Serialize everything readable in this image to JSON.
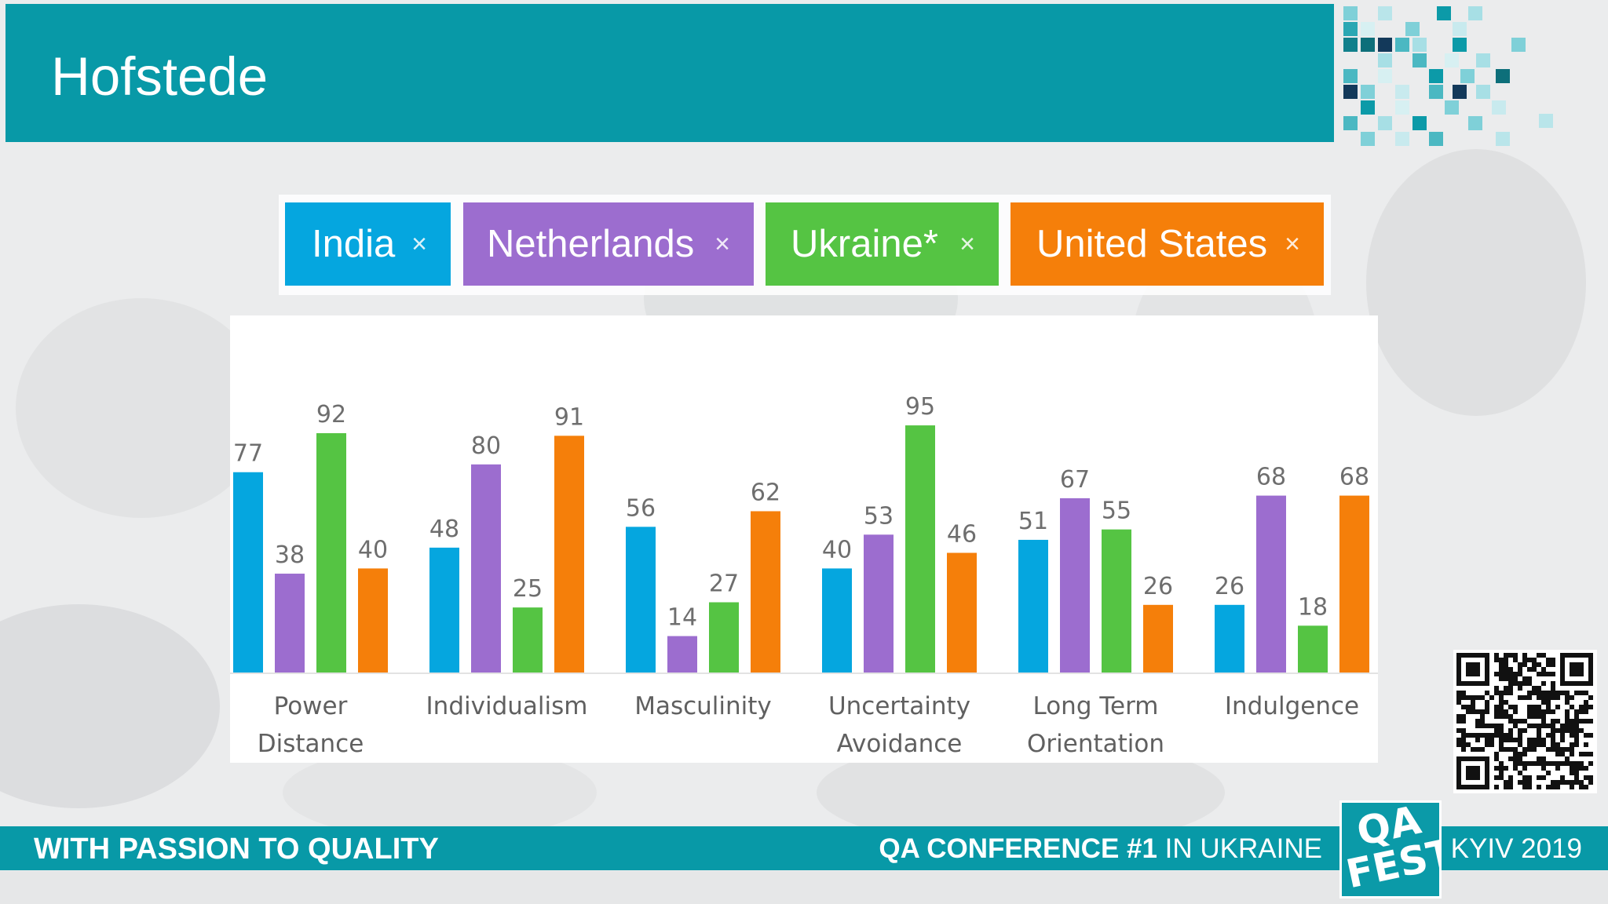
{
  "slide": {
    "title": "Hofstede"
  },
  "legend": {
    "items": [
      {
        "label": "India",
        "color": "#05a6df"
      },
      {
        "label": "Netherlands",
        "color": "#9c6dcf"
      },
      {
        "label": "Ukraine*",
        "color": "#55c443"
      },
      {
        "label": "United States",
        "color": "#f57f0a"
      }
    ],
    "remove_glyph": "×"
  },
  "footer": {
    "slogan": "WITH PASSION TO QUALITY",
    "conference_bold": "QA CONFERENCE #1",
    "conference_rest": " IN UKRAINE",
    "event": "KYIV 2019"
  },
  "logo": {
    "text_line1": "QA",
    "text_line2": "FEST"
  },
  "colors": {
    "brand_teal": "#0899a7",
    "india": "#05a6df",
    "netherlands": "#9c6dcf",
    "ukraine": "#55c443",
    "united_states": "#f57f0a"
  },
  "chart_data": {
    "type": "bar",
    "title": "Hofstede",
    "xlabel": "",
    "ylabel": "",
    "ylim": [
      0,
      100
    ],
    "grid": false,
    "legend_position": "top",
    "categories": [
      [
        "Power",
        "Distance"
      ],
      [
        "Individualism"
      ],
      [
        "Masculinity"
      ],
      [
        "Uncertainty",
        "Avoidance"
      ],
      [
        "Long Term",
        "Orientation"
      ],
      [
        "Indulgence"
      ]
    ],
    "series": [
      {
        "name": "India",
        "color": "#05a6df",
        "values": [
          77,
          48,
          56,
          40,
          51,
          26
        ]
      },
      {
        "name": "Netherlands",
        "color": "#9c6dcf",
        "values": [
          38,
          80,
          14,
          53,
          67,
          68
        ]
      },
      {
        "name": "Ukraine*",
        "color": "#55c443",
        "values": [
          92,
          25,
          27,
          95,
          55,
          18
        ]
      },
      {
        "name": "United States",
        "color": "#f57f0a",
        "values": [
          40,
          91,
          62,
          46,
          26,
          68
        ]
      }
    ]
  }
}
